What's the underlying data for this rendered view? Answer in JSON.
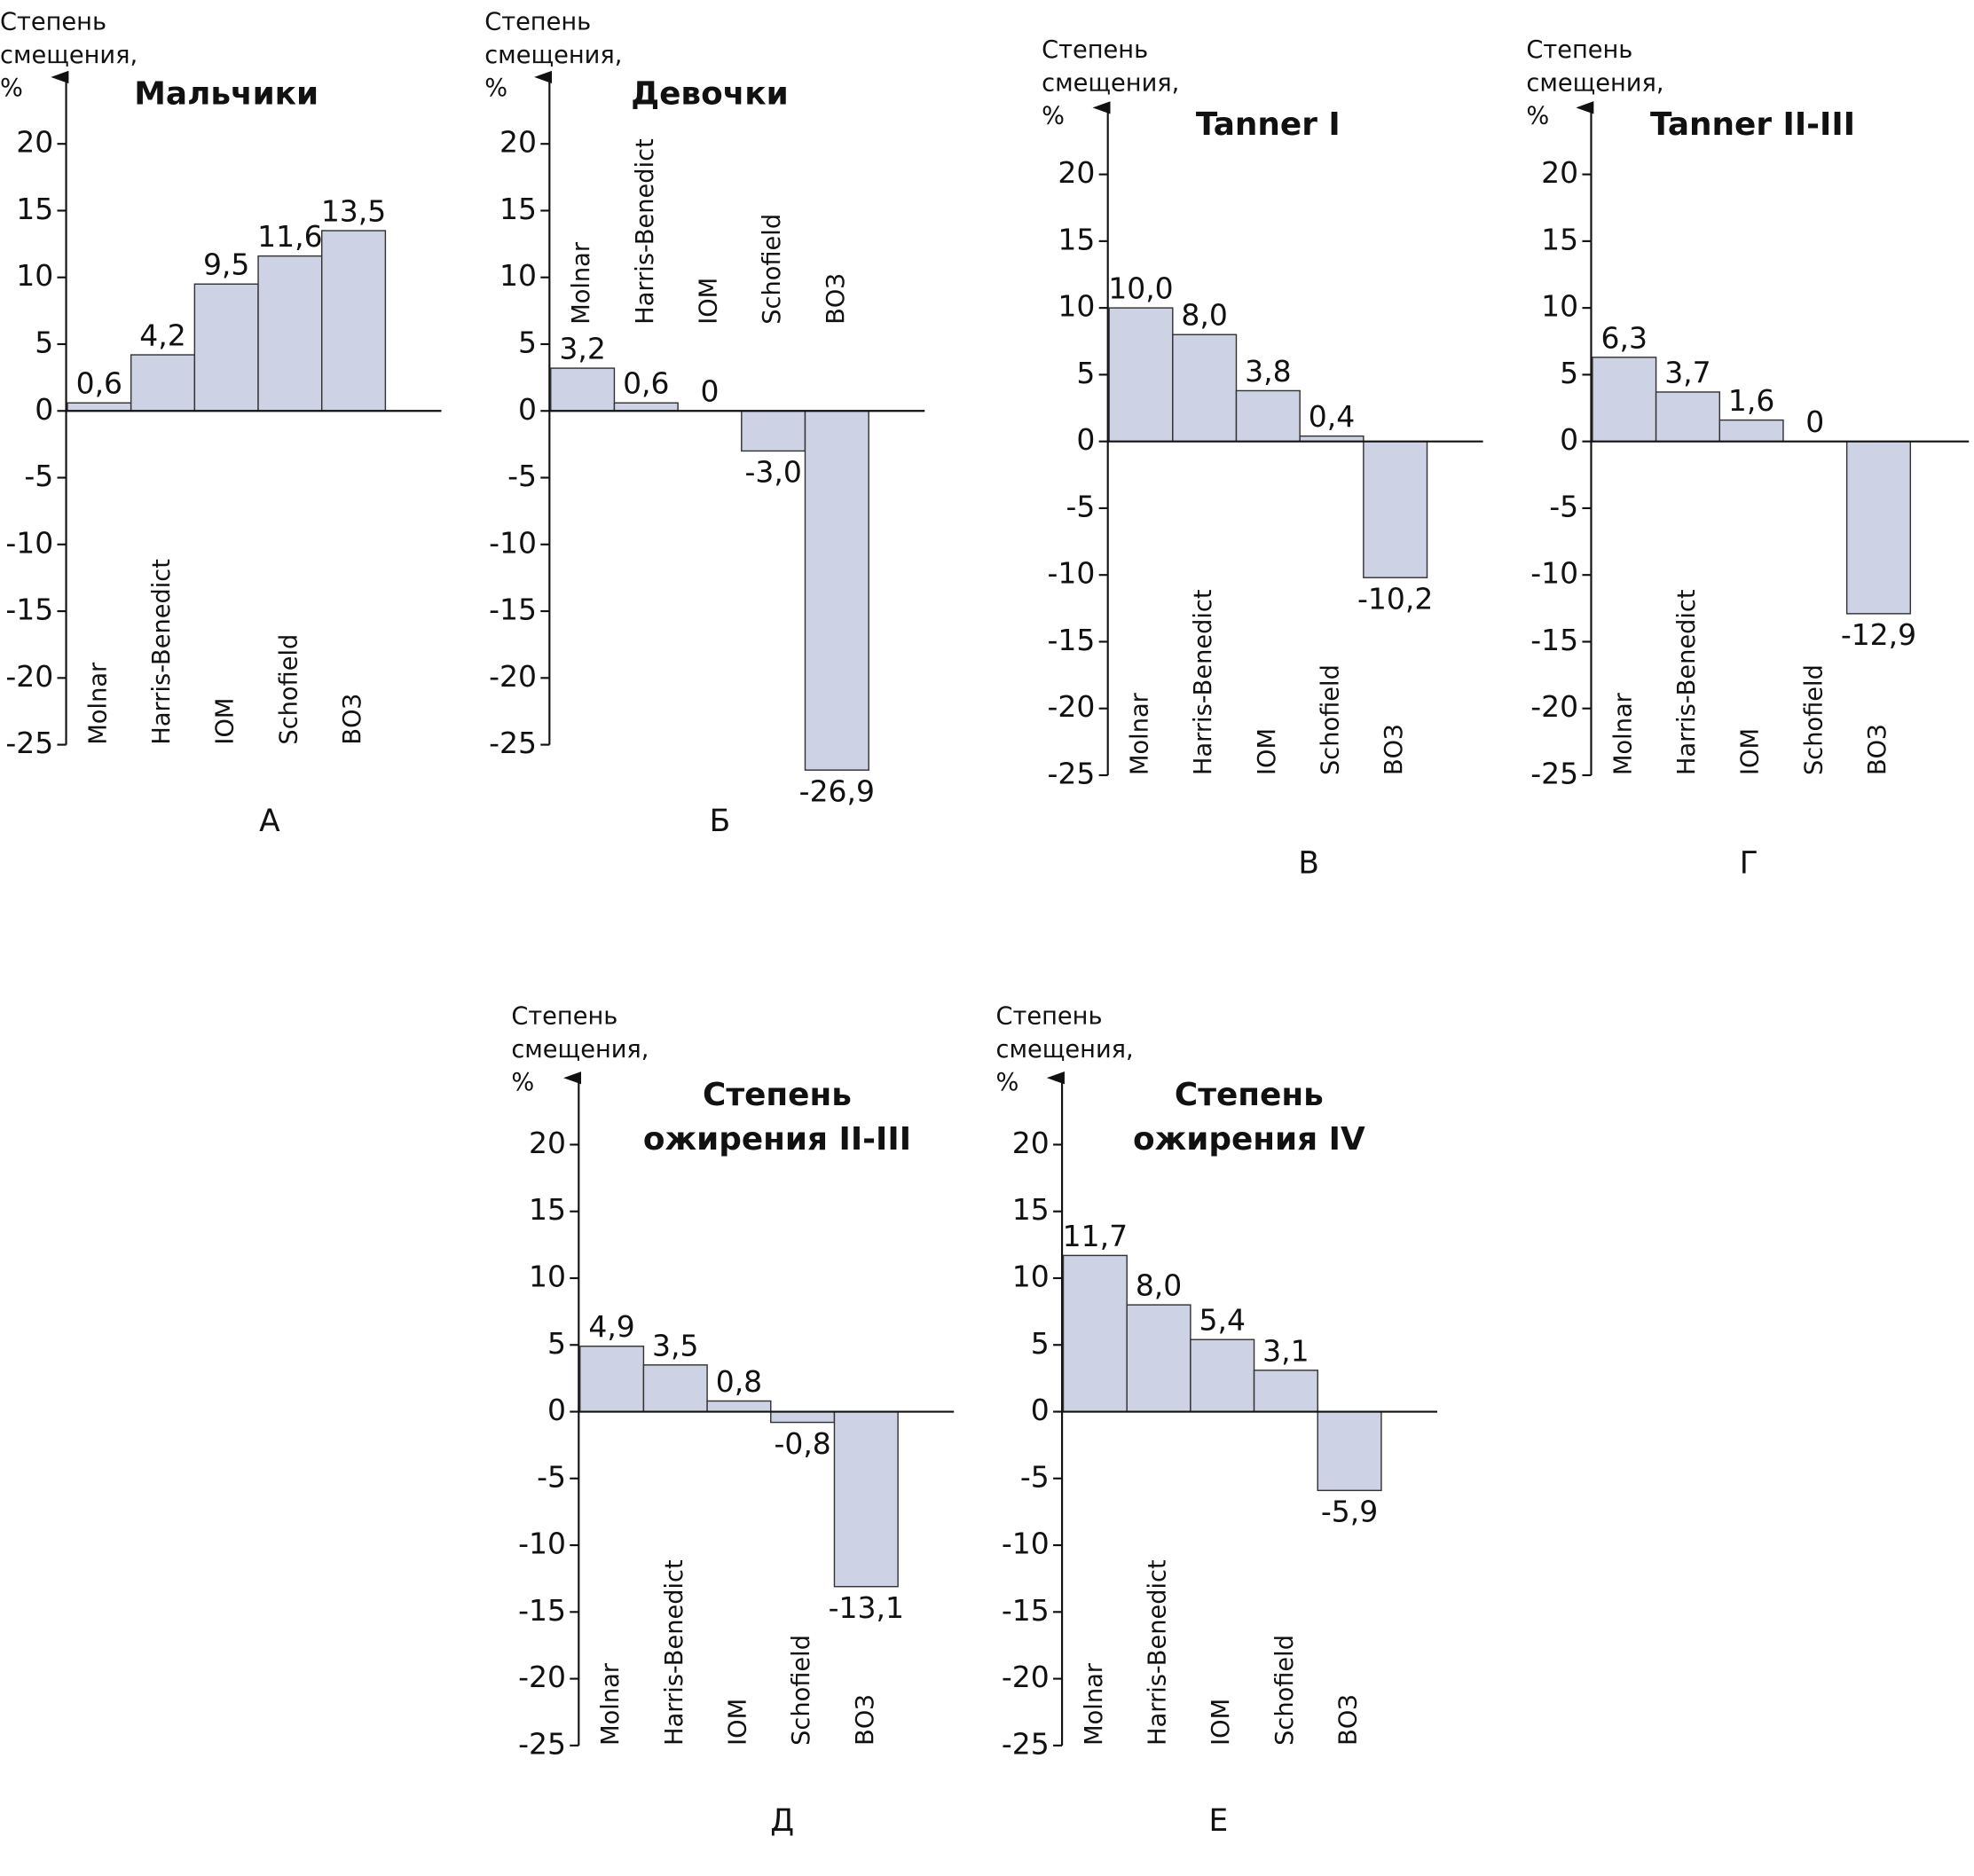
{
  "chart_data": [
    {
      "type": "bar",
      "title": [
        "Мальчики"
      ],
      "ylabel": [
        "Степень",
        "смещения,",
        "%"
      ],
      "panel": "А",
      "categories": [
        "Molnar",
        "Harris-Benedict",
        "IOM",
        "Schofield",
        "ВОЗ"
      ],
      "values": [
        0.6,
        4.2,
        9.5,
        11.6,
        13.5
      ],
      "value_labels": [
        "0,6",
        "4,2",
        "9,5",
        "11,6",
        "13,5"
      ],
      "color": "#cdd3e4",
      "ylim": [
        -25,
        25
      ],
      "yticks": [
        -25,
        -20,
        -15,
        -10,
        -5,
        0,
        5,
        10,
        15,
        20
      ]
    },
    {
      "type": "bar",
      "title": [
        "Девочки"
      ],
      "ylabel": [
        "Степень",
        "смещения,",
        "%"
      ],
      "panel": "Б",
      "categories": [
        "Molnar",
        "Harris-Benedict",
        "IOM",
        "Schofield",
        "ВОЗ"
      ],
      "values": [
        3.2,
        0.6,
        0,
        -3.0,
        -26.9
      ],
      "value_labels": [
        "3,2",
        "0,6",
        "0",
        "-3,0",
        "-26,9"
      ],
      "color": "#cdd3e4",
      "ylim": [
        -25,
        25
      ],
      "yticks": [
        -25,
        -20,
        -15,
        -10,
        -5,
        0,
        5,
        10,
        15,
        20
      ]
    },
    {
      "type": "bar",
      "title": [
        "Tanner I"
      ],
      "ylabel": [
        "Степень",
        "смещения,",
        "%"
      ],
      "panel": "В",
      "categories": [
        "Molnar",
        "Harris-Benedict",
        "IOM",
        "Schofield",
        "ВОЗ"
      ],
      "values": [
        10.0,
        8.0,
        3.8,
        0.4,
        -10.2
      ],
      "value_labels": [
        "10,0",
        "8,0",
        "3,8",
        "0,4",
        "-10,2"
      ],
      "color": "#cdd3e4",
      "ylim": [
        -25,
        25
      ],
      "yticks": [
        -25,
        -20,
        -15,
        -10,
        -5,
        0,
        5,
        10,
        15,
        20
      ]
    },
    {
      "type": "bar",
      "title": [
        "Tanner II-III"
      ],
      "ylabel": [
        "Степень",
        "смещения,",
        "%"
      ],
      "panel": "Г",
      "categories": [
        "Molnar",
        "Harris-Benedict",
        "IOM",
        "Schofield",
        "ВОЗ"
      ],
      "values": [
        6.3,
        3.7,
        1.6,
        0,
        -12.9
      ],
      "value_labels": [
        "6,3",
        "3,7",
        "1,6",
        "0",
        "-12,9"
      ],
      "color": "#cdd3e4",
      "ylim": [
        -25,
        25
      ],
      "yticks": [
        -25,
        -20,
        -15,
        -10,
        -5,
        0,
        5,
        10,
        15,
        20
      ]
    },
    {
      "type": "bar",
      "title": [
        "Степень",
        "ожирения II-III"
      ],
      "ylabel": [
        "Степень",
        "смещения,",
        "%"
      ],
      "panel": "Д",
      "categories": [
        "Molnar",
        "Harris-Benedict",
        "IOM",
        "Schofield",
        "ВОЗ"
      ],
      "values": [
        4.9,
        3.5,
        0.8,
        -0.8,
        -13.1
      ],
      "value_labels": [
        "4,9",
        "3,5",
        "0,8",
        "-0,8",
        "-13,1"
      ],
      "color": "#cdd3e4",
      "ylim": [
        -25,
        25
      ],
      "yticks": [
        -25,
        -20,
        -15,
        -10,
        -5,
        0,
        5,
        10,
        15,
        20
      ]
    },
    {
      "type": "bar",
      "title": [
        "Степень",
        "ожирения IV"
      ],
      "ylabel": [
        "Степень",
        "смещения,",
        "%"
      ],
      "panel": "Е",
      "categories": [
        "Molnar",
        "Harris-Benedict",
        "IOM",
        "Schofield",
        "ВОЗ"
      ],
      "values": [
        11.7,
        8.0,
        5.4,
        3.1,
        -5.9
      ],
      "value_labels": [
        "11,7",
        "8,0",
        "5,4",
        "3,1",
        "-5,9"
      ],
      "color": "#cdd3e4",
      "ylim": [
        -25,
        25
      ],
      "yticks": [
        -25,
        -20,
        -15,
        -10,
        -5,
        0,
        5,
        10,
        15,
        20
      ]
    }
  ]
}
